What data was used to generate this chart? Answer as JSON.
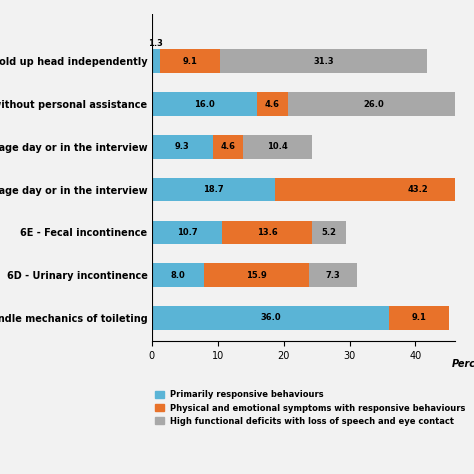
{
  "categories": [
    "...o handle mechanics of toileting",
    "6D - Urinary incontinence",
    "6E - Fecal incontinence",
    "...average day or in the interview",
    "...average day or in the interview",
    "...alk without personal assistance",
    "...e or hold up head independently"
  ],
  "series": [
    {
      "label": "Primarily responsive behaviours",
      "color": "#5ab4d6",
      "values": [
        36.0,
        8.0,
        10.7,
        18.7,
        9.3,
        16.0,
        1.3
      ]
    },
    {
      "label": "Physical and emotional symptoms with responsive behaviours",
      "color": "#e8722a",
      "values": [
        9.1,
        15.9,
        13.6,
        43.2,
        4.6,
        4.6,
        9.1
      ]
    },
    {
      "label": "High functional deficits with loss of speech and eye contact",
      "color": "#a8a8a8",
      "values": [
        0.0,
        7.3,
        5.2,
        0.0,
        10.4,
        26.0,
        31.3
      ]
    }
  ],
  "xlim": [
    0,
    46
  ],
  "xticks": [
    0,
    10,
    20,
    30,
    40
  ],
  "xlabel": "Perc",
  "bar_height": 0.55,
  "background_color": "#f2f2f2",
  "label_fontsize": 6.0,
  "tick_fontsize": 7.0,
  "legend_fontsize": 6.0
}
